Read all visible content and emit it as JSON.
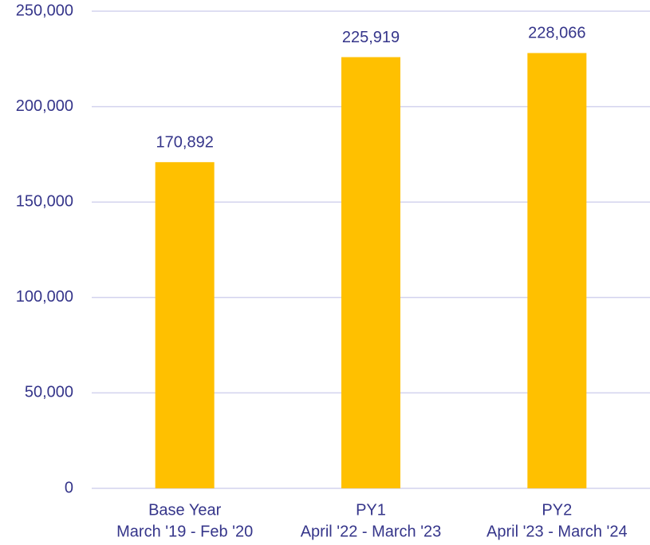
{
  "chart_data": {
    "type": "bar",
    "categories": [
      [
        "Base Year",
        "March '19 - Feb '20"
      ],
      [
        "PY1",
        "April '22 - March '23"
      ],
      [
        "PY2",
        "April '23 - March '24"
      ]
    ],
    "values": [
      170892,
      225919,
      228066
    ],
    "value_labels": [
      "170,892",
      "225,919",
      "228,066"
    ],
    "color": "#ffc000",
    "ylim": [
      0,
      250000
    ],
    "yticks": [
      0,
      {
        "value": 50000,
        "label": "50,000"
      },
      {
        "value": 100000,
        "label": "100,000"
      },
      {
        "value": 150000,
        "label": "150,000"
      },
      {
        "value": 200000,
        "label": "200,000"
      },
      {
        "value": 250000,
        "label": "250,000"
      }
    ],
    "grid": true
  }
}
